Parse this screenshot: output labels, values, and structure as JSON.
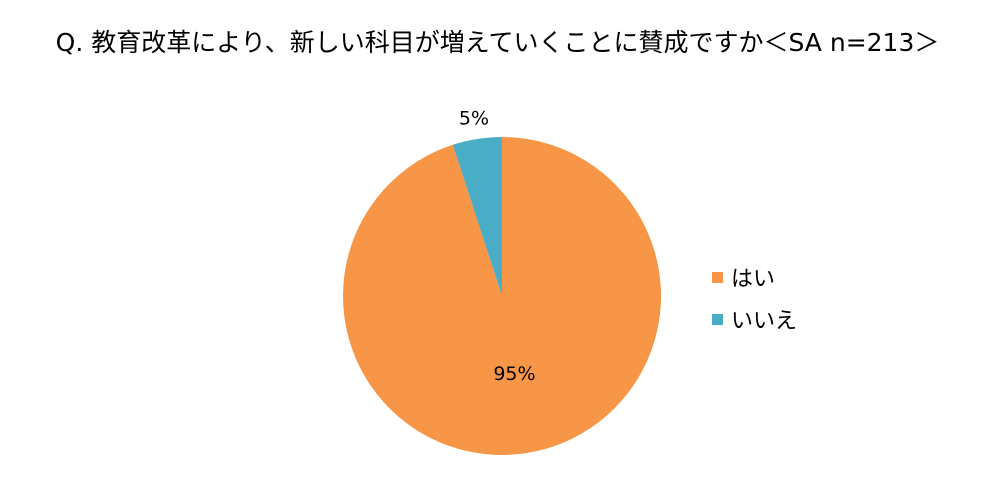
{
  "chart_data": {
    "type": "pie",
    "title": "Q. 教育改革により、新しい科目が増えていくことに賛成ですか＜SA n=213＞",
    "categories": [
      "はい",
      "いいえ"
    ],
    "values": [
      95,
      5
    ],
    "data_labels": [
      "95%",
      "5%"
    ],
    "colors": [
      "#F79646",
      "#4BACC6"
    ],
    "legend_position": "right"
  }
}
